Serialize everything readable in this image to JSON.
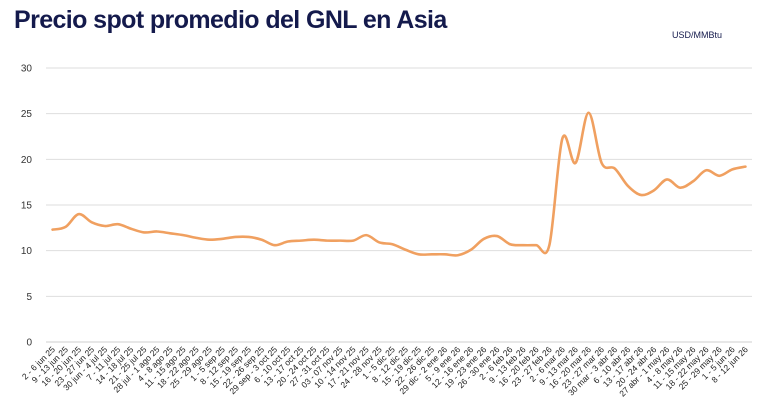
{
  "chart_data": {
    "type": "line",
    "title": "Precio spot promedio del GNL en Asia",
    "unit_label": "USD/MMBtu",
    "xlabel": "",
    "ylabel": "",
    "ylim": [
      0,
      30
    ],
    "yticks": [
      0,
      5,
      10,
      15,
      20,
      25,
      30
    ],
    "grid": true,
    "line_color": "#f0a060",
    "categories": [
      "2 - 6 jun 25",
      "9 - 13 jun 25",
      "16 - 20 jun 25",
      "23 - 27 jun 25",
      "30 jun - 4 jul 25",
      "7 - 11 jul 25",
      "14 - 18 jul 25",
      "21 - 25 jul 25",
      "28 jul - 1 ago 25",
      "4 - 8 ago 25",
      "11 - 15 ago 25",
      "18 - 22 ago 25",
      "25 - 29 ago 25",
      "1 - 5 sep 25",
      "8 - 12 sep 25",
      "15 - 19 sep 25",
      "22 - 26 sep 25",
      "29 sep - 3 oct 25",
      "6 - 10 oct 25",
      "13 - 17 oct 25",
      "20 - 24 oct 25",
      "27 - 31 oct 25",
      "03 - 07 nov 25",
      "10 - 14 nov 25",
      "17 - 21 nov 25",
      "24 - 28 nov 25",
      "1 - 5 dic 25",
      "8 - 12 dic 25",
      "15 - 19 dic 25",
      "22 - 26 dic 25",
      "29 dic - 2 ene 26",
      "5 - 9 ene 26",
      "12 - 16 ene 26",
      "19 - 23 ene 26",
      "26 - 30 ene 26",
      "2 - 6 feb 26",
      "9 - 13 feb 26",
      "16 - 20 feb 26",
      "23 - 27 feb 26",
      "2 - 6 mar 26",
      "9 - 13 mar 26",
      "16 - 20 mar 26",
      "23 - 27 mar 26",
      "30 mar - 3 abr 26",
      "6 - 10 abr 26",
      "13 - 17 abr 26",
      "20 - 24 abr 26",
      "27 abr - 1 may 26",
      "4 - 8 may 26",
      "11 - 15 may 26",
      "18 - 22 may 26",
      "25 - 29 may 26",
      "1 - 5 jun 26",
      "8 - 12 jun 26"
    ],
    "values": [
      12.3,
      12.6,
      14.0,
      13.1,
      12.7,
      12.9,
      12.4,
      12.0,
      12.1,
      11.9,
      11.7,
      11.4,
      11.2,
      11.3,
      11.5,
      11.5,
      11.2,
      10.6,
      11.0,
      11.1,
      11.2,
      11.1,
      11.1,
      11.1,
      11.7,
      10.9,
      10.7,
      10.1,
      9.6,
      9.6,
      9.6,
      9.5,
      10.1,
      11.3,
      11.6,
      10.7,
      10.6,
      10.6,
      10.6,
      22.3,
      19.6,
      25.1,
      19.6,
      19.0,
      17.1,
      16.1,
      16.6,
      17.8,
      16.9,
      17.6,
      18.8,
      18.2,
      18.9,
      19.2
    ]
  }
}
